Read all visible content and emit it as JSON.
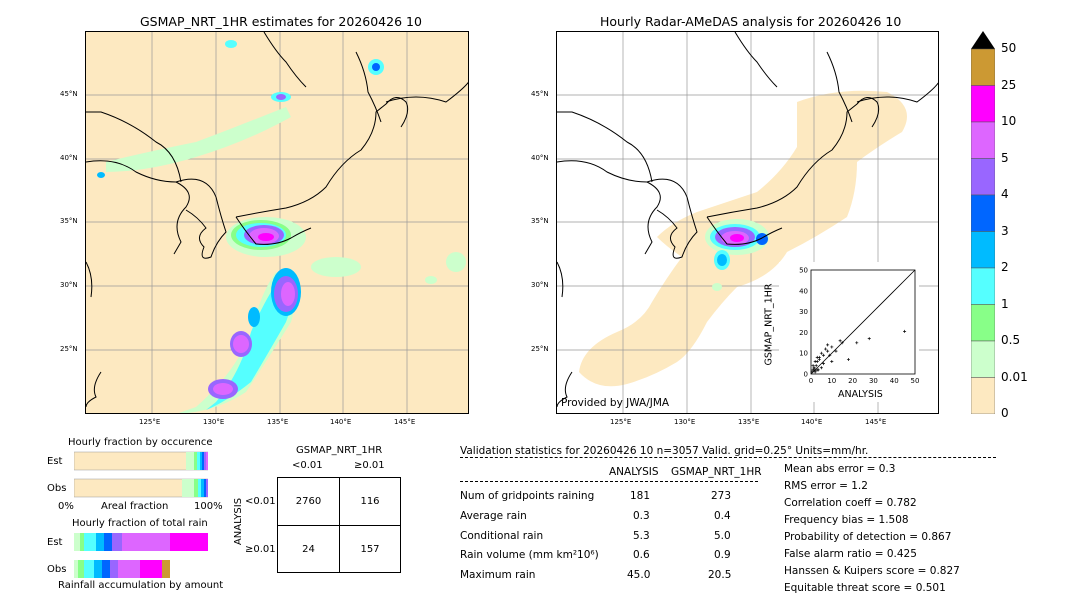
{
  "left_map": {
    "title": "GSMAP_NRT_1HR estimates for 20260426 10",
    "lat_labels": [
      "45°N",
      "40°N",
      "35°N",
      "30°N",
      "25°N"
    ],
    "lon_labels": [
      "125°E",
      "130°E",
      "135°E",
      "140°E",
      "145°E"
    ]
  },
  "right_map": {
    "title": "Hourly Radar-AMeDAS analysis for 20260426 10",
    "lat_labels": [
      "45°N",
      "40°N",
      "35°N",
      "30°N",
      "25°N"
    ],
    "lon_labels": [
      "125°E",
      "130°E",
      "135°E",
      "140°E",
      "145°E"
    ],
    "credit": "Provided by JWA/JMA"
  },
  "scatter": {
    "ylabel": "GSMAP_NRT_1HR",
    "xlabel": "ANALYSIS",
    "ticks": [
      "0",
      "10",
      "20",
      "30",
      "40",
      "50"
    ]
  },
  "colorbar": {
    "labels": [
      "50",
      "25",
      "10",
      "5",
      "4",
      "3",
      "2",
      "1",
      "0.5",
      "0.01",
      "0"
    ],
    "colors": [
      "#cc9933",
      "#ff00ff",
      "#dd66ff",
      "#9966ff",
      "#0066ff",
      "#00bbff",
      "#55ffff",
      "#88ff88",
      "#ccffcc",
      "#fde9c1"
    ]
  },
  "fraction_occ": {
    "title": "Hourly fraction by occurence",
    "row_est": "Est",
    "row_obs": "Obs",
    "axis_left": "0%",
    "axis_mid": "Areal fraction",
    "axis_right": "100%"
  },
  "fraction_total": {
    "title": "Hourly fraction of total rain",
    "row_est": "Est",
    "row_obs": "Obs",
    "footer": "Rainfall accumulation by amount"
  },
  "contingency": {
    "title": "GSMAP_NRT_1HR",
    "col1": "<0.01",
    "col2": "≥0.01",
    "row1": "<0.01",
    "row2": "≥0.01",
    "side": "ANALYSIS",
    "cells": [
      "2760",
      "116",
      "24",
      "157"
    ]
  },
  "validation": {
    "header": "Validation statistics for 20260426 10  n=3057 Valid. grid=0.25° Units=mm/hr.",
    "col_analysis": "ANALYSIS",
    "col_gsmap": "GSMAP_NRT_1HR",
    "rows": [
      {
        "label": "Num of gridpoints raining",
        "analysis": "181",
        "gsmap": "273"
      },
      {
        "label": "Average rain",
        "analysis": "0.3",
        "gsmap": "0.4"
      },
      {
        "label": "Conditional rain",
        "analysis": "5.3",
        "gsmap": "5.0"
      },
      {
        "label": "Rain volume (mm km²10⁶)",
        "analysis": "0.6",
        "gsmap": "0.9"
      },
      {
        "label": "Maximum rain",
        "analysis": "45.0",
        "gsmap": "20.5"
      }
    ],
    "scores": [
      "Mean abs error =    0.3",
      "RMS error =    1.2",
      "Correlation coeff =  0.782",
      "Frequency bias =  1.508",
      "Probability of detection =  0.867",
      "False alarm ratio =  0.425",
      "Hanssen & Kuipers score =  0.827",
      "Equitable threat score =  0.501"
    ]
  },
  "chart_data": [
    {
      "type": "scatter",
      "xlabel": "ANALYSIS",
      "ylabel": "GSMAP_NRT_1HR",
      "xlim": [
        0,
        50
      ],
      "ylim": [
        0,
        50
      ],
      "x": [
        0.5,
        1,
        1.5,
        2,
        2.5,
        3,
        3.5,
        4,
        5,
        6,
        7,
        8,
        9,
        10,
        12,
        14,
        15,
        18,
        22,
        28,
        45,
        1,
        2,
        3,
        4,
        5,
        6,
        8,
        10,
        3,
        2,
        1.5
      ],
      "y": [
        1,
        2,
        3,
        1.5,
        4,
        6,
        2,
        8,
        10,
        5,
        12,
        14,
        9,
        13,
        11,
        16,
        15,
        7,
        15,
        17,
        20.5,
        4,
        6,
        2,
        7,
        3,
        9,
        11,
        6,
        8,
        1,
        2.5
      ]
    },
    {
      "type": "table",
      "title": "GSMAP_NRT_1HR",
      "rows": [
        "<0.01",
        "≥0.01"
      ],
      "columns": [
        "<0.01",
        "≥0.01"
      ],
      "values": [
        [
          2760,
          116
        ],
        [
          24,
          157
        ]
      ]
    }
  ]
}
